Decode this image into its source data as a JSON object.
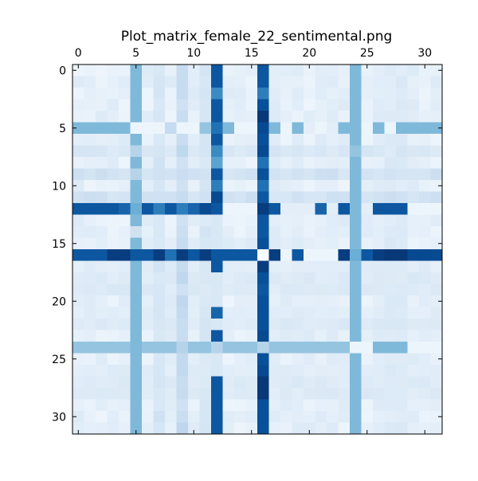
{
  "chart_data": {
    "type": "heatmap",
    "title": "Plot_matrix_female_22_sentimental.png",
    "xlabel": "",
    "ylabel": "",
    "colormap": "Blues",
    "value_range": [
      0,
      1
    ],
    "rows": 32,
    "cols": 32,
    "x_axis": {
      "position": "top",
      "ticks": [
        0,
        5,
        10,
        15,
        20,
        25,
        30
      ],
      "labels": [
        "0",
        "5",
        "10",
        "15",
        "20",
        "25",
        "30"
      ]
    },
    "y_axis": {
      "position": "left",
      "ticks": [
        0,
        5,
        10,
        15,
        20,
        25,
        30
      ],
      "labels": [
        "0",
        "5",
        "10",
        "15",
        "20",
        "25",
        "30"
      ]
    },
    "grid": false,
    "legend": "none",
    "strong_rows": {
      "5": {
        "default": 0.45,
        "cells": {
          "5": 0.05,
          "6": 0.05,
          "7": 0.05,
          "8": 0.25,
          "9": 0.05,
          "10": 0.05,
          "11": 0.4,
          "12": 0.75,
          "13": 0.45,
          "14": 0.05,
          "15": 0.05,
          "16": 0.9,
          "17": 0.45,
          "18": 0.05,
          "19": 0.45,
          "20": 0.1,
          "21": 0.05,
          "22": 0.1,
          "23": 0.45,
          "24": 0.45,
          "25": 0.05,
          "26": 0.45,
          "27": 0.05
        }
      },
      "12": {
        "default": 0.85,
        "cells": {
          "4": 0.8,
          "5": 0.5,
          "6": 0.85,
          "7": 0.7,
          "8": 0.85,
          "9": 0.7,
          "10": 0.8,
          "11": 0.9,
          "12": 0.85,
          "13": 0.05,
          "14": 0.05,
          "15": 0.05,
          "16": 0.95,
          "17": 0.85,
          "18": 0.1,
          "19": 0.1,
          "20": 0.1,
          "21": 0.8,
          "22": 0.1,
          "23": 0.85,
          "24": 0.45,
          "25": 0.1,
          "26": 0.85,
          "27": 0.85,
          "28": 0.85,
          "29": 0.05,
          "30": 0.05,
          "31": 0.05
        }
      },
      "16": {
        "default": 0.85,
        "cells": {
          "3": 0.95,
          "4": 0.95,
          "6": 0.85,
          "7": 0.95,
          "8": 0.75,
          "9": 0.95,
          "10": 0.85,
          "11": 0.95,
          "12": 0.85,
          "16": 0.0,
          "17": 0.95,
          "18": 0.05,
          "19": 0.85,
          "20": 0.05,
          "21": 0.05,
          "22": 0.05,
          "23": 0.95,
          "24": 0.5,
          "25": 0.85,
          "26": 0.95,
          "27": 0.97,
          "28": 0.97,
          "29": 0.9,
          "30": 0.9,
          "31": 0.9
        }
      },
      "24": {
        "default": 0.4,
        "cells": {
          "9": 0.3,
          "12": 0.3,
          "16": 0.3,
          "23": 0.4,
          "24": 0.05,
          "25": 0.05,
          "26": 0.45,
          "27": 0.45,
          "28": 0.45,
          "29": 0.05,
          "30": 0.05,
          "31": 0.05
        }
      }
    },
    "strong_cols": {
      "5": {
        "default": 0.45,
        "cells": {
          "12": 0.5,
          "16": 0.85,
          "24": 0.4,
          "0": 0.45,
          "7": 0.3,
          "9": 0.3,
          "14": 0.2
        }
      },
      "12": {
        "default": 0.85,
        "cells": {
          "0": 0.85,
          "1": 0.85,
          "2": 0.65,
          "5": 0.7,
          "6": 0.85,
          "7": 0.65,
          "8": 0.55,
          "10": 0.7,
          "11": 0.9,
          "13": 0.15,
          "14": 0.15,
          "15": 0.15,
          "17": 0.85,
          "18": 0.15,
          "19": 0.15,
          "20": 0.15,
          "21": 0.8,
          "22": 0.15,
          "23": 0.85,
          "24": 0.3,
          "25": 0.15,
          "26": 0.15,
          "27": 0.85,
          "28": 0.85
        }
      },
      "16": {
        "default": 0.88,
        "cells": {
          "0": 0.85,
          "1": 0.85,
          "2": 0.7,
          "4": 0.97,
          "5": 0.9,
          "7": 0.9,
          "8": 0.75,
          "10": 0.75,
          "11": 0.85,
          "13": 0.85,
          "14": 0.85,
          "16": 0.0,
          "17": 0.95,
          "19": 0.85,
          "23": 0.9,
          "24": 0.3,
          "26": 0.9,
          "27": 0.97,
          "28": 0.97
        }
      },
      "24": {
        "default": 0.45,
        "cells": {
          "24": 0.05,
          "12": 0.45,
          "16": 0.45,
          "7": 0.4,
          "8": 0.45,
          "11": 0.45
        }
      }
    },
    "medium_cols": {
      "7": 0.2,
      "9": 0.28,
      "11": 0.18,
      "17": 0.12,
      "21": 0.1,
      "22": 0.12,
      "26": 0.12,
      "27": 0.15,
      "28": 0.15
    },
    "medium_rows": {
      "7": 0.18,
      "9": 0.22,
      "11": 0.22,
      "17": 0.12,
      "18": 0.15,
      "19": 0.15,
      "21": 0.12,
      "22": 0.15,
      "26": 0.12,
      "27": 0.15,
      "28": 0.15
    },
    "background_level": 0.05
  }
}
